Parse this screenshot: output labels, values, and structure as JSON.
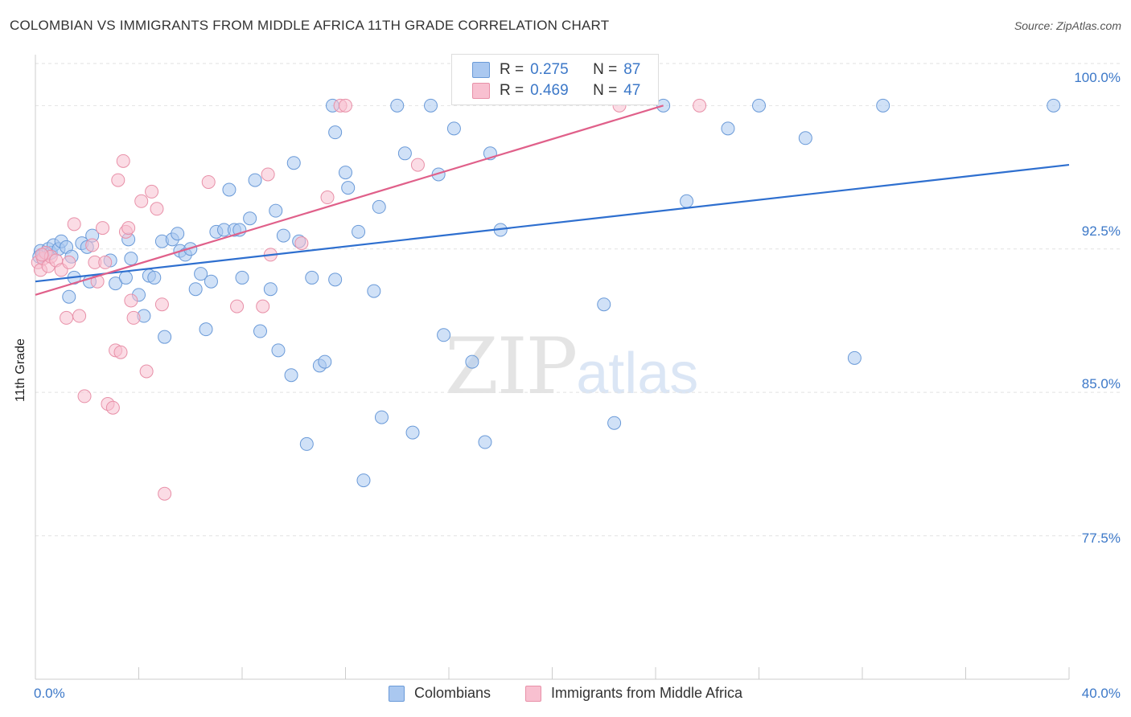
{
  "title": "COLOMBIAN VS IMMIGRANTS FROM MIDDLE AFRICA 11TH GRADE CORRELATION CHART",
  "source": "Source: ZipAtlas.com",
  "watermark": {
    "zip": "ZIP",
    "atlas": "atlas"
  },
  "legend": {
    "r_label": "R =",
    "n_label": "N =",
    "series": [
      {
        "r": "0.275",
        "n": "87"
      },
      {
        "r": "0.469",
        "n": "47"
      }
    ]
  },
  "chart_data": {
    "type": "scatter",
    "title": "COLOMBIAN VS IMMIGRANTS FROM MIDDLE AFRICA 11TH GRADE CORRELATION CHART",
    "xlabel": "",
    "ylabel": "11th Grade",
    "xlim": [
      0,
      40
    ],
    "ylim": [
      70,
      102.2
    ],
    "x_tick_labels": [
      "0.0%",
      "40.0%"
    ],
    "y_ticks": [
      77.5,
      85.0,
      92.5,
      100.0
    ],
    "y_tick_labels": [
      "77.5%",
      "85.0%",
      "92.5%",
      "100.0%"
    ],
    "grid": true,
    "colors": {
      "blue_fill": "#aac8f0",
      "blue_stroke": "#6a9ad8",
      "blue_line": "#2e6fcf",
      "pink_fill": "#f8c0d0",
      "pink_stroke": "#e890a8",
      "pink_line": "#e0608a"
    },
    "series": [
      {
        "name": "Colombians",
        "color": "#6a9ad8",
        "trend": {
          "x": [
            0,
            40
          ],
          "y": [
            90.8,
            96.9
          ]
        },
        "points": [
          [
            0.2,
            92.4
          ],
          [
            0.3,
            92.2
          ],
          [
            0.5,
            92.5
          ],
          [
            0.6,
            92.3
          ],
          [
            0.7,
            92.7
          ],
          [
            0.9,
            92.5
          ],
          [
            1.0,
            92.9
          ],
          [
            1.2,
            92.6
          ],
          [
            1.4,
            92.1
          ],
          [
            1.5,
            91.0
          ],
          [
            1.3,
            90.0
          ],
          [
            1.8,
            92.8
          ],
          [
            2.0,
            92.6
          ],
          [
            2.1,
            90.8
          ],
          [
            2.2,
            93.2
          ],
          [
            2.9,
            91.9
          ],
          [
            3.1,
            90.7
          ],
          [
            3.5,
            91.0
          ],
          [
            3.6,
            93.0
          ],
          [
            3.7,
            92.0
          ],
          [
            4.0,
            90.1
          ],
          [
            4.2,
            89.0
          ],
          [
            4.4,
            91.1
          ],
          [
            4.6,
            91.0
          ],
          [
            4.9,
            92.9
          ],
          [
            5.0,
            87.9
          ],
          [
            5.3,
            93.0
          ],
          [
            5.5,
            93.3
          ],
          [
            5.6,
            92.4
          ],
          [
            5.8,
            92.2
          ],
          [
            6.0,
            92.5
          ],
          [
            6.2,
            90.4
          ],
          [
            6.4,
            91.2
          ],
          [
            6.6,
            88.3
          ],
          [
            6.8,
            90.8
          ],
          [
            7.0,
            93.4
          ],
          [
            7.3,
            93.5
          ],
          [
            7.5,
            95.6
          ],
          [
            7.7,
            93.5
          ],
          [
            7.9,
            93.5
          ],
          [
            8.0,
            91.0
          ],
          [
            8.3,
            94.1
          ],
          [
            8.5,
            96.1
          ],
          [
            8.7,
            88.2
          ],
          [
            9.1,
            90.4
          ],
          [
            9.3,
            94.5
          ],
          [
            9.4,
            87.2
          ],
          [
            9.6,
            93.2
          ],
          [
            9.9,
            85.9
          ],
          [
            10.0,
            97.0
          ],
          [
            10.2,
            92.9
          ],
          [
            10.5,
            82.3
          ],
          [
            10.7,
            91.0
          ],
          [
            11.0,
            86.4
          ],
          [
            11.2,
            86.6
          ],
          [
            11.5,
            100.0
          ],
          [
            11.6,
            98.6
          ],
          [
            11.6,
            90.9
          ],
          [
            12.0,
            96.5
          ],
          [
            12.1,
            95.7
          ],
          [
            12.5,
            93.4
          ],
          [
            12.7,
            80.4
          ],
          [
            13.1,
            90.3
          ],
          [
            13.3,
            94.7
          ],
          [
            13.4,
            83.7
          ],
          [
            14.0,
            100.0
          ],
          [
            14.3,
            97.5
          ],
          [
            14.6,
            82.9
          ],
          [
            15.3,
            100.0
          ],
          [
            15.6,
            96.4
          ],
          [
            15.8,
            88.0
          ],
          [
            16.2,
            98.8
          ],
          [
            16.9,
            86.6
          ],
          [
            17.4,
            82.4
          ],
          [
            17.6,
            97.5
          ],
          [
            18.0,
            93.5
          ],
          [
            22.0,
            89.6
          ],
          [
            22.4,
            83.4
          ],
          [
            24.3,
            100.0
          ],
          [
            25.2,
            95.0
          ],
          [
            26.8,
            98.8
          ],
          [
            28.0,
            100.0
          ],
          [
            29.8,
            98.3
          ],
          [
            31.7,
            86.8
          ],
          [
            32.8,
            100.0
          ],
          [
            39.4,
            100.0
          ],
          [
            0.15,
            92.1
          ]
        ]
      },
      {
        "name": "Immigrants from Middle Africa",
        "color": "#e890a8",
        "trend": {
          "x": [
            0,
            24.3
          ],
          "y": [
            90.1,
            100.0
          ]
        },
        "points": [
          [
            0.1,
            91.8
          ],
          [
            0.2,
            91.4
          ],
          [
            0.3,
            92.0
          ],
          [
            0.4,
            92.3
          ],
          [
            0.5,
            91.6
          ],
          [
            0.6,
            92.1
          ],
          [
            0.8,
            91.9
          ],
          [
            1.0,
            91.4
          ],
          [
            1.2,
            88.9
          ],
          [
            1.3,
            91.8
          ],
          [
            1.5,
            93.8
          ],
          [
            1.7,
            89.0
          ],
          [
            1.9,
            84.8
          ],
          [
            2.2,
            92.7
          ],
          [
            2.3,
            91.8
          ],
          [
            2.4,
            90.8
          ],
          [
            2.6,
            93.6
          ],
          [
            2.7,
            91.8
          ],
          [
            2.8,
            84.4
          ],
          [
            3.0,
            84.2
          ],
          [
            3.1,
            87.2
          ],
          [
            3.2,
            96.1
          ],
          [
            3.3,
            87.1
          ],
          [
            3.4,
            97.1
          ],
          [
            3.5,
            93.4
          ],
          [
            3.6,
            93.6
          ],
          [
            3.7,
            89.8
          ],
          [
            3.8,
            88.9
          ],
          [
            4.1,
            95.0
          ],
          [
            4.3,
            86.1
          ],
          [
            4.5,
            95.5
          ],
          [
            4.7,
            94.6
          ],
          [
            4.9,
            89.6
          ],
          [
            5.0,
            79.7
          ],
          [
            6.7,
            96.0
          ],
          [
            7.8,
            89.5
          ],
          [
            8.8,
            89.5
          ],
          [
            9.0,
            96.4
          ],
          [
            9.1,
            92.2
          ],
          [
            10.3,
            92.8
          ],
          [
            11.3,
            95.2
          ],
          [
            11.8,
            100.0
          ],
          [
            12.0,
            100.0
          ],
          [
            14.8,
            96.9
          ],
          [
            22.6,
            100.0
          ],
          [
            25.7,
            100.0
          ],
          [
            0.25,
            92.2
          ]
        ]
      }
    ]
  },
  "bottom_legend": [
    "Colombians",
    "Immigrants from Middle Africa"
  ]
}
